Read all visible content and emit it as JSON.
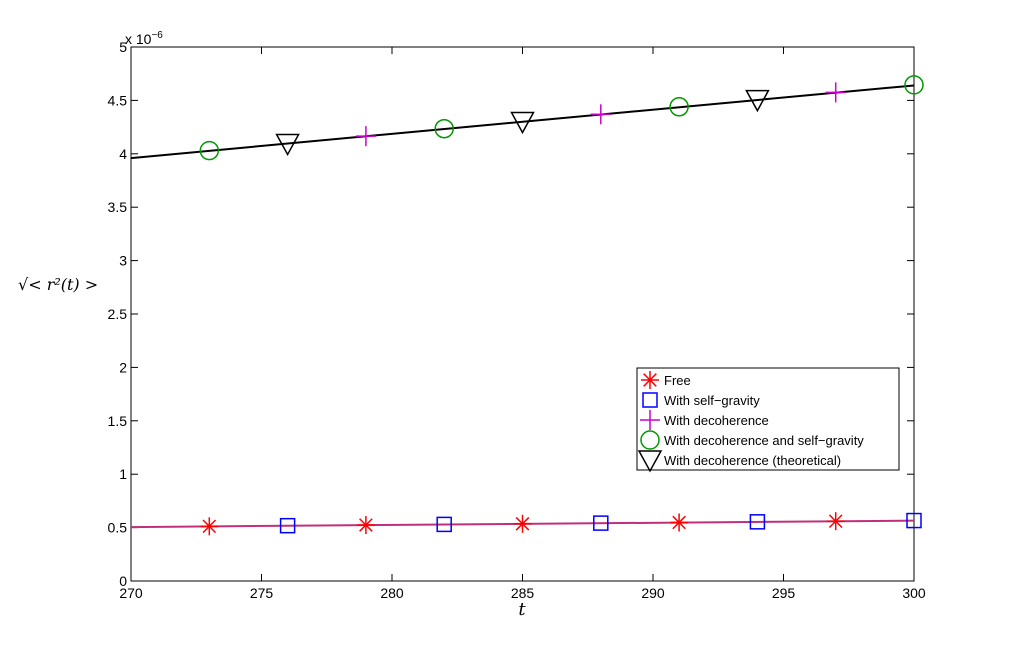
{
  "chart_data": {
    "type": "line",
    "title": "",
    "xlabel": "t",
    "ylabel": "√< r²(t) >",
    "exponent_label": {
      "base": "x 10",
      "power": "−6"
    },
    "xlim": [
      270,
      300
    ],
    "ylim": [
      0,
      5
    ],
    "xticks": [
      "270",
      "275",
      "280",
      "285",
      "290",
      "295",
      "300"
    ],
    "yticks": [
      "0",
      "0.5",
      "1",
      "1.5",
      "2",
      "2.5",
      "3",
      "3.5",
      "4",
      "4.5",
      "5"
    ],
    "grid": false,
    "legend_position": "lower-right",
    "lines": [
      {
        "color": "#000000",
        "x": [
          270,
          300
        ],
        "y": [
          3.96,
          4.64
        ]
      },
      {
        "color": "#c0307a",
        "x": [
          270,
          300
        ],
        "y": [
          0.505,
          0.565
        ]
      }
    ],
    "series": [
      {
        "name": "Free",
        "marker": "asterisk",
        "color": "#ff0000",
        "x": [
          273,
          279,
          285,
          291,
          297
        ],
        "y": [
          0.512,
          0.524,
          0.536,
          0.548,
          0.56
        ]
      },
      {
        "name": "With self−gravity",
        "marker": "square",
        "color": "#0000ff",
        "x": [
          276,
          282,
          288,
          294,
          300
        ],
        "y": [
          0.518,
          0.53,
          0.542,
          0.554,
          0.566
        ]
      },
      {
        "name": "With decoherence",
        "marker": "plus",
        "color": "#cc00cc",
        "x": [
          279,
          288,
          297
        ],
        "y": [
          4.165,
          4.37,
          4.575
        ]
      },
      {
        "name": "With decoherence and self−gravity",
        "marker": "circle",
        "color": "#009900",
        "x": [
          273,
          282,
          291,
          300
        ],
        "y": [
          4.03,
          4.235,
          4.44,
          4.645
        ]
      },
      {
        "name": "With decoherence (theoretical)",
        "marker": "triangle-down",
        "color": "#000000",
        "x": [
          276,
          285,
          294
        ],
        "y": [
          4.097,
          4.302,
          4.507
        ]
      }
    ]
  }
}
